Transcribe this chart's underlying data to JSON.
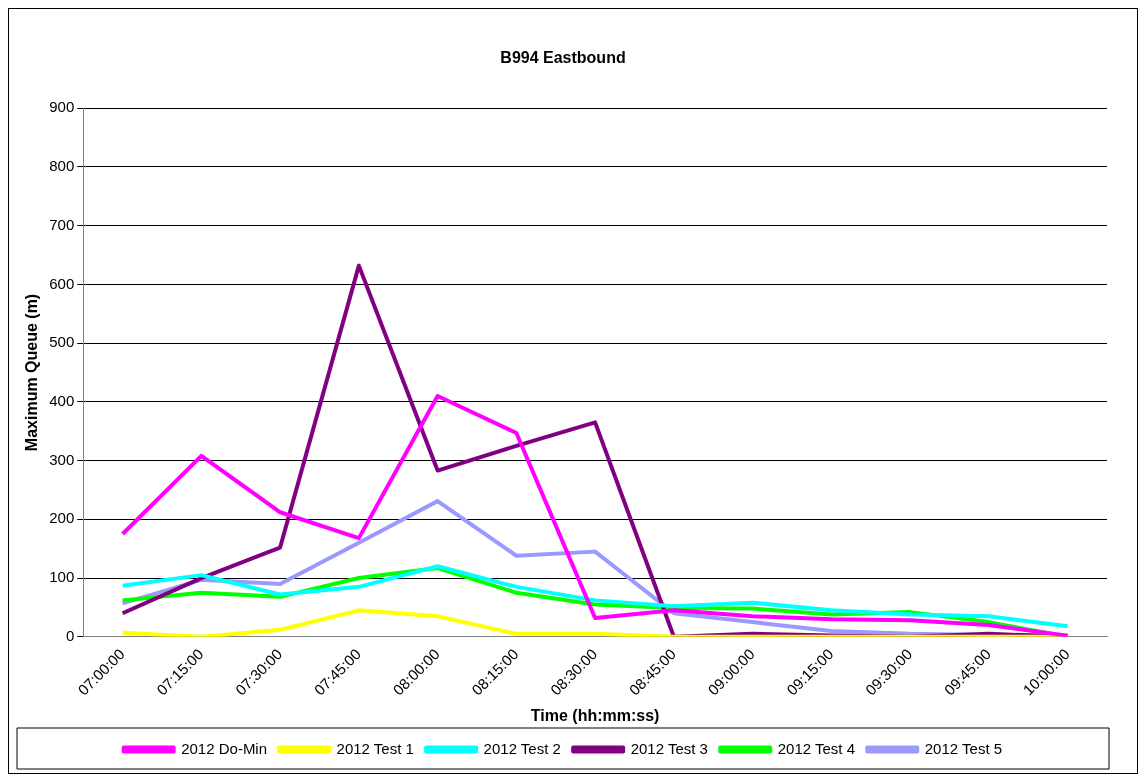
{
  "chart_data": {
    "type": "line",
    "title": "B994 Eastbound",
    "xlabel": "Time (hh:mm:ss)",
    "ylabel": "Maximum Queue (m)",
    "categories": [
      "07:00:00",
      "07:15:00",
      "07:30:00",
      "07:45:00",
      "08:00:00",
      "08:15:00",
      "08:30:00",
      "08:45:00",
      "09:00:00",
      "09:15:00",
      "09:30:00",
      "09:45:00",
      "10:00:00"
    ],
    "series": [
      {
        "name": "2012 Do-Min",
        "color": "#ff00ff",
        "values": [
          175,
          308,
          212,
          168,
          410,
          347,
          32,
          45,
          35,
          30,
          28,
          20,
          2
        ]
      },
      {
        "name": "2012 Test 1",
        "color": "#ffff00",
        "values": [
          7,
          0,
          12,
          45,
          35,
          5,
          5,
          0,
          0,
          0,
          0,
          0,
          0
        ]
      },
      {
        "name": "2012 Test 2",
        "color": "#00ffff",
        "values": [
          87,
          105,
          72,
          85,
          120,
          85,
          62,
          52,
          58,
          45,
          38,
          35,
          18
        ]
      },
      {
        "name": "2012 Test 3",
        "color": "#800080",
        "values": [
          40,
          100,
          152,
          632,
          283,
          325,
          365,
          0,
          5,
          2,
          0,
          5,
          0
        ]
      },
      {
        "name": "2012 Test 4",
        "color": "#00ff00",
        "values": [
          62,
          75,
          68,
          100,
          117,
          75,
          55,
          49,
          48,
          38,
          42,
          25,
          0
        ]
      },
      {
        "name": "2012 Test 5",
        "color": "#9999ff",
        "values": [
          57,
          97,
          90,
          160,
          231,
          138,
          145,
          40,
          25,
          10,
          5,
          3,
          2
        ]
      }
    ],
    "ylim": [
      0,
      900
    ],
    "yticks": [
      0,
      100,
      200,
      300,
      400,
      500,
      600,
      700,
      800,
      900
    ],
    "grid": "y",
    "legend": "bottom",
    "marker": "none",
    "line_style": "solid"
  }
}
